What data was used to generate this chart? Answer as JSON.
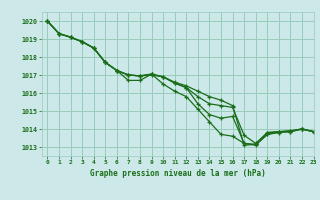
{
  "title": "Graphe pression niveau de la mer (hPa)",
  "bg_color": "#cce8e8",
  "grid_color": "#99ccbb",
  "line_color": "#1a6e1a",
  "xlim": [
    -0.5,
    23
  ],
  "ylim": [
    1012.5,
    1020.5
  ],
  "yticks": [
    1013,
    1014,
    1015,
    1016,
    1017,
    1018,
    1019,
    1020
  ],
  "xticks": [
    0,
    1,
    2,
    3,
    4,
    5,
    6,
    7,
    8,
    9,
    10,
    11,
    12,
    13,
    14,
    15,
    16,
    17,
    18,
    19,
    20,
    21,
    22,
    23
  ],
  "series": [
    [
      1020.0,
      1019.3,
      1019.1,
      1018.85,
      1018.5,
      1017.7,
      1017.25,
      1017.0,
      1016.95,
      1017.0,
      1016.9,
      1016.6,
      1016.4,
      1016.1,
      1015.8,
      1015.6,
      1015.3,
      1013.1,
      1013.15,
      1013.8,
      1013.85,
      1013.9,
      1014.0,
      1013.85
    ],
    [
      1020.0,
      1019.3,
      1019.1,
      1018.85,
      1018.5,
      1017.7,
      1017.25,
      1017.0,
      1016.95,
      1017.05,
      1016.9,
      1016.55,
      1016.3,
      1015.8,
      1015.4,
      1015.3,
      1015.2,
      1013.65,
      1013.2,
      1013.8,
      1013.85,
      1013.9,
      1014.0,
      1013.85
    ],
    [
      1020.0,
      1019.3,
      1019.1,
      1018.85,
      1018.5,
      1017.7,
      1017.25,
      1017.0,
      1016.95,
      1017.05,
      1016.9,
      1016.55,
      1016.3,
      1015.4,
      1014.8,
      1014.6,
      1014.7,
      1013.2,
      1013.1,
      1013.7,
      1013.85,
      1013.85,
      1014.0,
      1013.85
    ],
    [
      1020.0,
      1019.3,
      1019.1,
      1018.85,
      1018.5,
      1017.7,
      1017.25,
      1016.7,
      1016.7,
      1017.05,
      1016.5,
      1016.1,
      1015.8,
      1015.1,
      1014.4,
      1013.7,
      1013.6,
      1013.2,
      1013.15,
      1013.7,
      1013.8,
      1013.85,
      1014.0,
      1013.85
    ]
  ],
  "figsize": [
    3.2,
    2.0
  ],
  "dpi": 100
}
